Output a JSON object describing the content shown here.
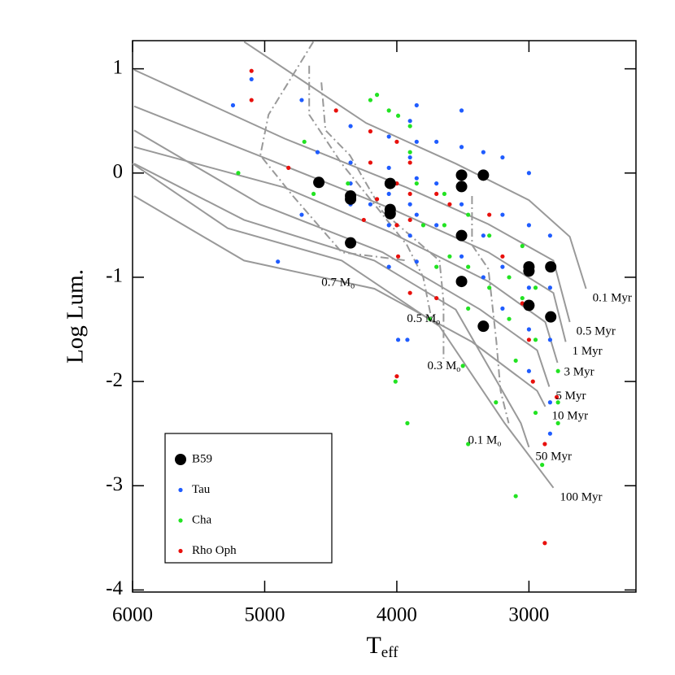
{
  "chart_data": {
    "type": "scatter",
    "xlabel": {
      "text": "T",
      "sub": "eff"
    },
    "ylabel": "Log Lum.",
    "xlim": [
      6000,
      2190
    ],
    "ylim": [
      -4.02,
      1.27
    ],
    "xticks": [
      6000,
      5000,
      4000,
      3000
    ],
    "yticks": [
      1,
      0,
      -1,
      -2,
      -3,
      -4
    ],
    "legend": "lower left",
    "series": [
      {
        "name": "B59",
        "color": "#000000",
        "size": "large",
        "x": [
          4590,
          4350,
          4350,
          4350,
          4050,
          4050,
          4050,
          3510,
          3510,
          3510,
          3510,
          3345,
          3345,
          3000,
          3000,
          3000,
          2835,
          2835
        ],
        "y": [
          -0.09,
          -0.22,
          -0.25,
          -0.67,
          -0.1,
          -0.35,
          -0.39,
          -0.02,
          -0.13,
          -0.6,
          -1.04,
          -0.02,
          -1.47,
          -0.9,
          -0.94,
          -1.27,
          -0.9,
          -1.38
        ]
      },
      {
        "name": "Tau",
        "color": "#1f5cff",
        "size": "small",
        "x": [
          5240,
          5100,
          4900,
          4720,
          4720,
          4600,
          4350,
          4350,
          4350,
          4350,
          4200,
          4060,
          4060,
          4060,
          4060,
          4060,
          3990,
          3900,
          3900,
          3900,
          3900,
          3850,
          3850,
          3850,
          3850,
          3850,
          3700,
          3700,
          3700,
          3510,
          3510,
          3510,
          3510,
          3345,
          3345,
          3345,
          3200,
          3200,
          3200,
          3200,
          3000,
          3000,
          3000,
          3000,
          3000,
          2840,
          2840,
          2840,
          2840,
          2840,
          3920
        ],
        "y": [
          0.65,
          0.9,
          -0.85,
          0.7,
          -0.4,
          0.2,
          0.45,
          0.1,
          -0.1,
          -0.3,
          -0.3,
          0.35,
          0.05,
          -0.2,
          -0.5,
          -0.9,
          -1.6,
          0.5,
          0.15,
          -0.3,
          -0.6,
          0.65,
          0.3,
          -0.05,
          -0.4,
          -0.85,
          0.3,
          -0.1,
          -0.5,
          0.6,
          0.25,
          -0.3,
          -0.8,
          0.2,
          -0.6,
          -1.0,
          0.15,
          -0.4,
          -0.9,
          -1.3,
          0,
          -0.5,
          -1.1,
          -1.5,
          -1.9,
          -0.6,
          -1.1,
          -1.6,
          -2.2,
          -2.5,
          -1.6
        ]
      },
      {
        "name": "Cha",
        "color": "#22e322",
        "size": "small",
        "x": [
          5200,
          4700,
          4630,
          4200,
          4150,
          4060,
          3990,
          3900,
          3900,
          3850,
          3800,
          3750,
          3700,
          3640,
          3640,
          3600,
          3500,
          3460,
          3460,
          3460,
          3460,
          3300,
          3300,
          3250,
          3150,
          3150,
          3100,
          3100,
          3050,
          3050,
          2950,
          2950,
          2950,
          2900,
          2780,
          2780,
          2780,
          4010,
          3920,
          4370
        ],
        "y": [
          0.0,
          0.3,
          -0.2,
          0.7,
          0.75,
          0.6,
          0.55,
          0.45,
          0.2,
          -0.1,
          -0.5,
          -1.4,
          -0.9,
          -0.2,
          -0.5,
          -0.8,
          -1.85,
          -0.4,
          -0.9,
          -1.3,
          -2.6,
          -0.6,
          -1.1,
          -2.2,
          -1.0,
          -1.4,
          -1.8,
          -3.1,
          -0.7,
          -1.2,
          -1.1,
          -1.6,
          -2.3,
          -2.8,
          -1.9,
          -2.2,
          -2.4,
          -2.0,
          -2.4,
          -0.1
        ]
      },
      {
        "name": "Rho Oph",
        "color": "#e8100c",
        "size": "small",
        "x": [
          5100,
          5100,
          4820,
          4460,
          4200,
          4200,
          4250,
          4150,
          4000,
          4000,
          4000,
          3990,
          3900,
          3900,
          3900,
          3900,
          3700,
          3700,
          3600,
          3300,
          3200,
          3050,
          3000,
          2970,
          2880,
          2880,
          2790,
          4000
        ],
        "y": [
          0.98,
          0.7,
          0.05,
          0.6,
          0.4,
          0.1,
          -0.45,
          -0.25,
          0.3,
          -0.1,
          -0.5,
          -0.8,
          0.1,
          -0.2,
          -0.45,
          -1.15,
          -0.2,
          -1.2,
          -0.3,
          -0.4,
          -0.8,
          -1.25,
          -1.6,
          -2.0,
          -2.6,
          -3.55,
          -2.15,
          -1.95
        ]
      }
    ],
    "isochrones": [
      {
        "label": "0.1 Myr",
        "x": [
          5156,
          4232,
          3554,
          3000,
          2691,
          2568
        ],
        "y": [
          1.26,
          0.48,
          0.09,
          -0.26,
          -0.61,
          -1.11
        ]
      },
      {
        "label": "0.5 Myr",
        "x": [
          5988,
          4848,
          3924,
          3307,
          2815,
          2691
        ],
        "y": [
          0.99,
          0.33,
          -0.14,
          -0.49,
          -0.84,
          -1.43
        ]
      },
      {
        "label": "1 Myr",
        "x": [
          5988,
          4971,
          4047,
          3307,
          2815,
          2722
        ],
        "y": [
          0.64,
          0.13,
          -0.34,
          -0.76,
          -1.15,
          -1.62
        ]
      },
      {
        "label": "3 Myr",
        "x": [
          5988,
          4848,
          4047,
          3307,
          2876,
          2784
        ],
        "y": [
          0.25,
          -0.14,
          -0.57,
          -1.04,
          -1.43,
          -1.82
        ]
      },
      {
        "label": "5 Myr",
        "x": [
          5988,
          5033,
          4108,
          3369,
          2938,
          2846
        ],
        "y": [
          0.41,
          -0.3,
          -0.76,
          -1.31,
          -1.7,
          -2.05
        ]
      },
      {
        "label": "10 Myr",
        "x": [
          5988,
          5156,
          4170,
          3431,
          2938,
          2876
        ],
        "y": [
          -0.22,
          -0.84,
          -1.11,
          -1.62,
          -2.09,
          -2.24
        ]
      },
      {
        "label": "50 Myr",
        "x": [
          5988,
          5156,
          4170,
          3554,
          3061,
          3000
        ],
        "y": [
          0.09,
          -0.45,
          -0.84,
          -1.31,
          -2.4,
          -2.63
        ]
      },
      {
        "label": "100 Myr",
        "x": [
          6000,
          5279,
          4417,
          3677,
          3184,
          2815
        ],
        "y": [
          0.09,
          -0.53,
          -0.84,
          -1.47,
          -2.4,
          -3.02
        ]
      }
    ],
    "tracks": [
      {
        "label": "0.7 M",
        "sub": "o",
        "x": [
          4632,
          4971,
          5033,
          4786,
          4417,
          3924
        ],
        "y": [
          1.26,
          0.56,
          0.17,
          -0.22,
          -0.76,
          -0.84
        ]
      },
      {
        "label": "0.5 M",
        "sub": "o",
        "x": [
          4663,
          4663,
          4417,
          4170,
          3924,
          3800,
          3739
        ],
        "y": [
          1.03,
          0.56,
          0.09,
          -0.3,
          -0.69,
          -1.0,
          -1.39
        ]
      },
      {
        "label": "0.3 M",
        "sub": "o",
        "x": [
          4571,
          4540,
          4355,
          4108,
          3677,
          3646,
          3646
        ],
        "y": [
          0.87,
          0.41,
          0.17,
          -0.37,
          -0.84,
          -1.23,
          -1.78
        ]
      },
      {
        "label": "0.1 M",
        "sub": "o",
        "x": [
          3431,
          3431,
          3307,
          3246,
          3215,
          3153
        ],
        "y": [
          -0.22,
          -0.69,
          -0.92,
          -1.62,
          -2.09,
          -2.4
        ]
      }
    ]
  }
}
